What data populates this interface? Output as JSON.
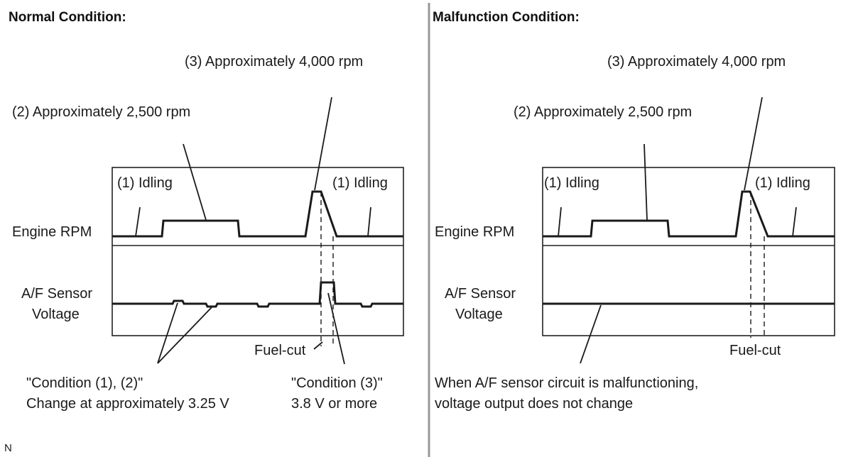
{
  "normal": {
    "heading": "Normal Condition:",
    "label_4000": "(3) Approximately 4,000 rpm",
    "label_2500": "(2) Approximately 2,500 rpm",
    "idling_left": "(1) Idling",
    "idling_right": "(1) Idling",
    "rpm_label": "Engine RPM",
    "af_label_line1": "A/F Sensor",
    "af_label_line2": "Voltage",
    "fuel_cut": "Fuel-cut",
    "note_cond12_line1": "\"Condition (1), (2)\"",
    "note_cond12_line2": "Change at approximately 3.25 V",
    "note_cond3_line1": "\"Condition (3)\"",
    "note_cond3_line2": "3.8 V or more"
  },
  "malfunction": {
    "heading": "Malfunction Condition:",
    "label_4000": "(3) Approximately 4,000 rpm",
    "label_2500": "(2) Approximately 2,500 rpm",
    "idling_left": "(1) Idling",
    "idling_right": "(1) Idling",
    "rpm_label": "Engine RPM",
    "af_label_line1": "A/F Sensor",
    "af_label_line2": "Voltage",
    "fuel_cut": "Fuel-cut",
    "note_line1": "When A/F sensor circuit is malfunctioning,",
    "note_line2": "voltage output does not change"
  },
  "corner_mark": "N"
}
